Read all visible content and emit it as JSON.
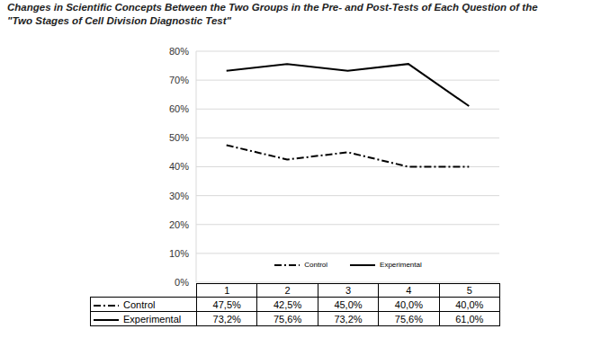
{
  "chart_data": {
    "type": "line",
    "title": "Changes in Scientific Concepts Between the Two Groups in the Pre- and Post-Tests of Each Question of the \"Two Stages of Cell Division Diagnostic Test\"",
    "categories": [
      "1",
      "2",
      "3",
      "4",
      "5"
    ],
    "series": [
      {
        "name": "Control",
        "color": "#000000",
        "line_style": "dashdot",
        "values": [
          47.5,
          42.5,
          45,
          40,
          40
        ],
        "value_labels": [
          "47,5%",
          "42,5%",
          "45,0%",
          "40,0%",
          "40,0%"
        ]
      },
      {
        "name": "Experimental",
        "color": "#000000",
        "line_style": "solid",
        "values": [
          73.2,
          75.6,
          73.2,
          75.6,
          61
        ],
        "value_labels": [
          "73,2%",
          "75,6%",
          "73,2%",
          "75,6%",
          "61,0%"
        ]
      }
    ],
    "ylim": [
      0,
      80
    ],
    "yticks": [
      {
        "value": 0,
        "label": "0%"
      },
      {
        "value": 10,
        "label": "10%"
      },
      {
        "value": 20,
        "label": "20%"
      },
      {
        "value": 30,
        "label": "30%"
      },
      {
        "value": 40,
        "label": "40%"
      },
      {
        "value": 50,
        "label": "50%"
      },
      {
        "value": 60,
        "label": "60%"
      },
      {
        "value": 70,
        "label": "70%"
      },
      {
        "value": 80,
        "label": "80%"
      }
    ],
    "grid": true,
    "legend": "bottom"
  }
}
